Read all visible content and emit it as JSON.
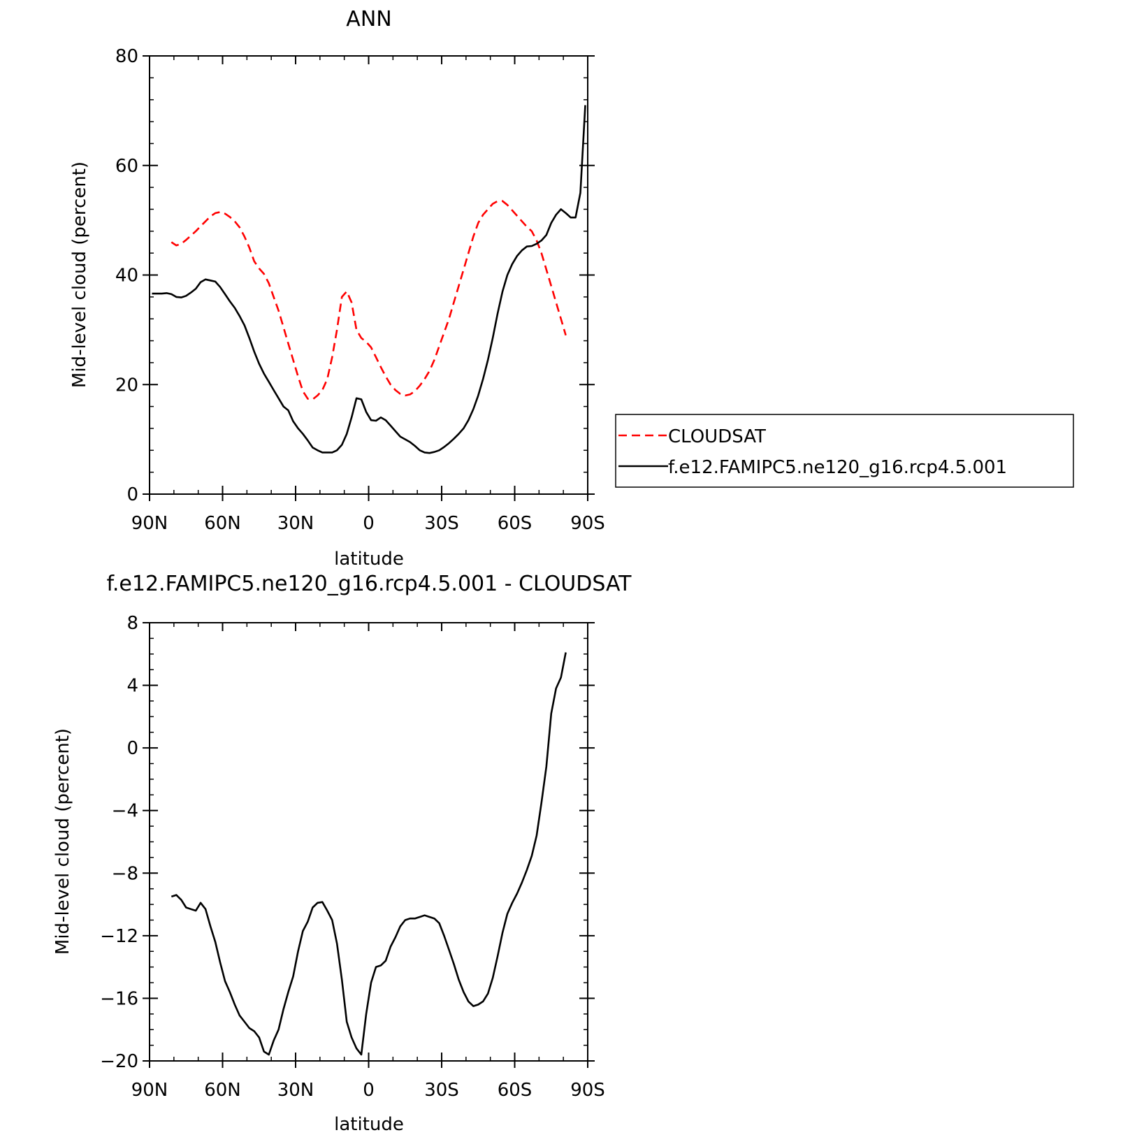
{
  "chart_data": [
    {
      "type": "line",
      "title": "ANN",
      "xlabel": "latitude",
      "ylabel": "Mid-level cloud (percent)",
      "xlim": [
        90,
        -90
      ],
      "ylim": [
        0,
        80
      ],
      "xticks": [
        90,
        60,
        30,
        0,
        -30,
        -60,
        -90
      ],
      "xticklabels": [
        "90N",
        "60N",
        "30N",
        "0",
        "30S",
        "60S",
        "90S"
      ],
      "yticks": [
        0,
        20,
        40,
        60,
        80
      ],
      "yticklabels": [
        "0",
        "20",
        "40",
        "60",
        "80"
      ],
      "grid": false,
      "legend": "right",
      "series": [
        {
          "name": "CLOUDSAT",
          "color": "#ff0000",
          "dash": "dashed",
          "x": [
            81,
            79,
            77,
            75,
            73,
            71,
            69,
            67,
            65,
            63,
            61,
            59,
            57,
            55,
            53,
            51,
            49,
            47,
            45,
            43,
            41,
            39,
            37,
            35,
            33,
            31,
            29,
            27,
            25,
            23,
            21,
            19,
            17,
            15,
            13,
            11,
            9,
            7,
            5,
            3,
            1,
            -1,
            -3,
            -5,
            -7,
            -9,
            -11,
            -13,
            -15,
            -17,
            -19,
            -21,
            -23,
            -25,
            -27,
            -29,
            -31,
            -33,
            -35,
            -37,
            -39,
            -41,
            -43,
            -45,
            -47,
            -49,
            -51,
            -53,
            -55,
            -57,
            -59,
            -61,
            -63,
            -65,
            -67,
            -69,
            -71,
            -73,
            -75,
            -77,
            -79,
            -81
          ],
          "y": [
            46.0,
            45.4,
            45.7,
            46.4,
            47.2,
            48.0,
            48.9,
            49.8,
            50.7,
            51.3,
            51.5,
            51.2,
            50.6,
            49.8,
            48.7,
            47.0,
            45.0,
            42.5,
            41.2,
            40.2,
            38.5,
            36.0,
            33.5,
            30.5,
            27.5,
            24.5,
            21.5,
            18.8,
            17.4,
            17.3,
            18.0,
            19.0,
            21.0,
            25.0,
            30.0,
            36.0,
            37.0,
            35.0,
            30.0,
            28.5,
            27.8,
            26.8,
            25.0,
            23.2,
            21.5,
            20.0,
            19.0,
            18.3,
            18.0,
            18.2,
            18.8,
            19.8,
            21.0,
            22.5,
            24.5,
            27.0,
            29.5,
            32.0,
            35.0,
            38.0,
            41.0,
            44.0,
            47.0,
            49.5,
            51.0,
            52.0,
            53.0,
            53.5,
            53.5,
            52.8,
            51.8,
            50.8,
            49.8,
            48.8,
            48.0,
            46.3,
            44.0,
            41.0,
            38.0,
            35.0,
            32.0,
            29.0
          ],
          "note_visible_range": "series ends near 81S"
        },
        {
          "name": "f.e12.FAMIPC5.ne120_g16.rcp4.5.001",
          "color": "#000000",
          "dash": "solid",
          "x": [
            89,
            87,
            85,
            83,
            81,
            79,
            77,
            75,
            73,
            71,
            69,
            67,
            65,
            63,
            61,
            59,
            57,
            55,
            53,
            51,
            49,
            47,
            45,
            43,
            41,
            39,
            37,
            35,
            33,
            31,
            29,
            27,
            25,
            23,
            21,
            19,
            17,
            15,
            13,
            11,
            9,
            7,
            5,
            3,
            1,
            -1,
            -3,
            -5,
            -7,
            -9,
            -11,
            -13,
            -15,
            -17,
            -19,
            -21,
            -23,
            -25,
            -27,
            -29,
            -31,
            -33,
            -35,
            -37,
            -39,
            -41,
            -43,
            -45,
            -47,
            -49,
            -51,
            -53,
            -55,
            -57,
            -59,
            -61,
            -63,
            -65,
            -67,
            -69,
            -71,
            -73,
            -75,
            -77,
            -79,
            -81,
            -83,
            -85,
            -87,
            -89
          ],
          "y": [
            36.6,
            36.6,
            36.6,
            36.7,
            36.5,
            36.0,
            35.9,
            36.2,
            36.8,
            37.5,
            38.7,
            39.2,
            39.0,
            38.8,
            37.8,
            36.5,
            35.2,
            34.0,
            32.5,
            30.8,
            28.5,
            26.0,
            23.8,
            22.0,
            20.5,
            19.0,
            17.5,
            16.0,
            15.3,
            13.3,
            12.0,
            11.0,
            9.8,
            8.5,
            8.0,
            7.6,
            7.6,
            7.6,
            8.0,
            9.0,
            11.0,
            14.0,
            17.5,
            17.3,
            15.0,
            13.5,
            13.4,
            14.0,
            13.5,
            12.5,
            11.5,
            10.5,
            10.0,
            9.5,
            8.8,
            8.0,
            7.6,
            7.5,
            7.7,
            8.0,
            8.6,
            9.3,
            10.1,
            11.0,
            12.0,
            13.5,
            15.5,
            18.0,
            21.0,
            24.5,
            28.5,
            33.0,
            37.0,
            40.0,
            42.0,
            43.5,
            44.5,
            45.2,
            45.3,
            45.7,
            46.3,
            47.3,
            49.5,
            51.0,
            52.0,
            51.3,
            50.5,
            50.5,
            55.0,
            71.0
          ],
          "note_visible_range": ""
        }
      ]
    },
    {
      "type": "line",
      "title": "f.e12.FAMIPC5.ne120_g16.rcp4.5.001 - CLOUDSAT",
      "xlabel": "latitude",
      "ylabel": "Mid-level cloud (percent)",
      "xlim": [
        90,
        -90
      ],
      "ylim": [
        -20,
        8
      ],
      "xticks": [
        90,
        60,
        30,
        0,
        -30,
        -60,
        -90
      ],
      "xticklabels": [
        "90N",
        "60N",
        "30N",
        "0",
        "30S",
        "60S",
        "90S"
      ],
      "yticks": [
        -20,
        -16,
        -12,
        -8,
        -4,
        0,
        4,
        8
      ],
      "yticklabels": [
        "−20",
        "−16",
        "−12",
        "−8",
        "−4",
        "0",
        "4",
        "8"
      ],
      "grid": false,
      "series": [
        {
          "name": "",
          "color": "#000000",
          "dash": "solid",
          "x": [
            81,
            79,
            77,
            75,
            73,
            71,
            69,
            67,
            65,
            63,
            61,
            59,
            57,
            55,
            53,
            51,
            49,
            47,
            45,
            43,
            41,
            39,
            37,
            35,
            33,
            31,
            29,
            27,
            25,
            23,
            21,
            19,
            17,
            15,
            13,
            11,
            9,
            7,
            5,
            3,
            1,
            -1,
            -3,
            -5,
            -7,
            -9,
            -11,
            -13,
            -15,
            -17,
            -19,
            -21,
            -23,
            -25,
            -27,
            -29,
            -31,
            -33,
            -35,
            -37,
            -39,
            -41,
            -43,
            -45,
            -47,
            -49,
            -51,
            -53,
            -55,
            -57,
            -59,
            -61,
            -63,
            -65,
            -67,
            -69,
            -71,
            -73,
            -75,
            -77,
            -79,
            -81
          ],
          "y": [
            -9.5,
            -9.4,
            -9.7,
            -10.2,
            -10.3,
            -10.4,
            -9.9,
            -10.3,
            -11.4,
            -12.4,
            -13.7,
            -14.9,
            -15.6,
            -16.4,
            -17.1,
            -17.5,
            -17.9,
            -18.1,
            -18.5,
            -19.4,
            -19.6,
            -18.7,
            -18.0,
            -16.7,
            -15.6,
            -14.6,
            -13.0,
            -11.7,
            -11.1,
            -10.2,
            -9.9,
            -9.85,
            -10.4,
            -11.0,
            -12.5,
            -14.8,
            -17.5,
            -18.5,
            -19.2,
            -19.6,
            -17.0,
            -15.0,
            -14.0,
            -13.9,
            -13.6,
            -12.7,
            -12.1,
            -11.4,
            -11.0,
            -10.9,
            -10.9,
            -10.8,
            -10.7,
            -10.8,
            -10.9,
            -11.2,
            -12.0,
            -12.9,
            -13.8,
            -14.8,
            -15.6,
            -16.2,
            -16.5,
            -16.4,
            -16.2,
            -15.7,
            -14.7,
            -13.3,
            -11.8,
            -10.6,
            -9.9,
            -9.3,
            -8.6,
            -7.8,
            -6.9,
            -5.6,
            -3.5,
            -1.2,
            2.2,
            3.8,
            4.5,
            6.1
          ],
          "note_visible_range": ""
        }
      ]
    }
  ]
}
